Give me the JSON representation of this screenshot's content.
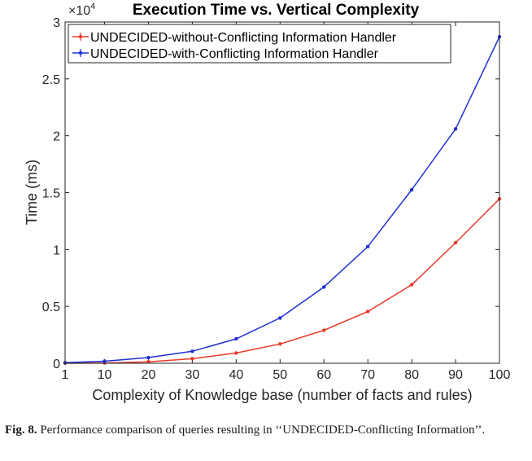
{
  "chart_data": {
    "type": "line",
    "title": "Execution Time vs. Vertical Complexity",
    "xlabel": "Complexity of Knowledge base (number of facts and rules)",
    "ylabel": "Time (ms)",
    "y_exponent_label": "×10",
    "y_exponent_power": "4",
    "x": [
      1,
      10,
      20,
      30,
      40,
      50,
      60,
      70,
      80,
      90,
      100
    ],
    "x_ticks": [
      1,
      10,
      20,
      30,
      40,
      50,
      60,
      70,
      80,
      90,
      100
    ],
    "x_tick_labels": [
      "1",
      "10",
      "20",
      "30",
      "40",
      "50",
      "60",
      "70",
      "80",
      "90",
      "100"
    ],
    "y_ticks": [
      0,
      5000,
      10000,
      15000,
      20000,
      25000,
      30000
    ],
    "y_tick_labels": [
      "0",
      "0.5",
      "1",
      "1.5",
      "2",
      "2.5",
      "3"
    ],
    "xlim": [
      1,
      100
    ],
    "ylim": [
      0,
      30000
    ],
    "grid": false,
    "legend_position": "top-left",
    "series": [
      {
        "name": "UNDECIDED-without-Conflicting Information Handler",
        "color": "#e8392a",
        "values": [
          0,
          20,
          130,
          400,
          900,
          1700,
          2900,
          4550,
          6900,
          10600,
          14450
        ]
      },
      {
        "name": "UNDECIDED-with-Conflicting Information Handler",
        "color": "#1f2fcf",
        "values": [
          50,
          180,
          500,
          1050,
          2150,
          3980,
          6700,
          10250,
          15250,
          20600,
          28700
        ]
      }
    ]
  },
  "caption": {
    "label": "Fig. 8.",
    "text": "Performance comparison of queries resulting in ‘‘UNDECIDED-Conflicting Information’’."
  }
}
